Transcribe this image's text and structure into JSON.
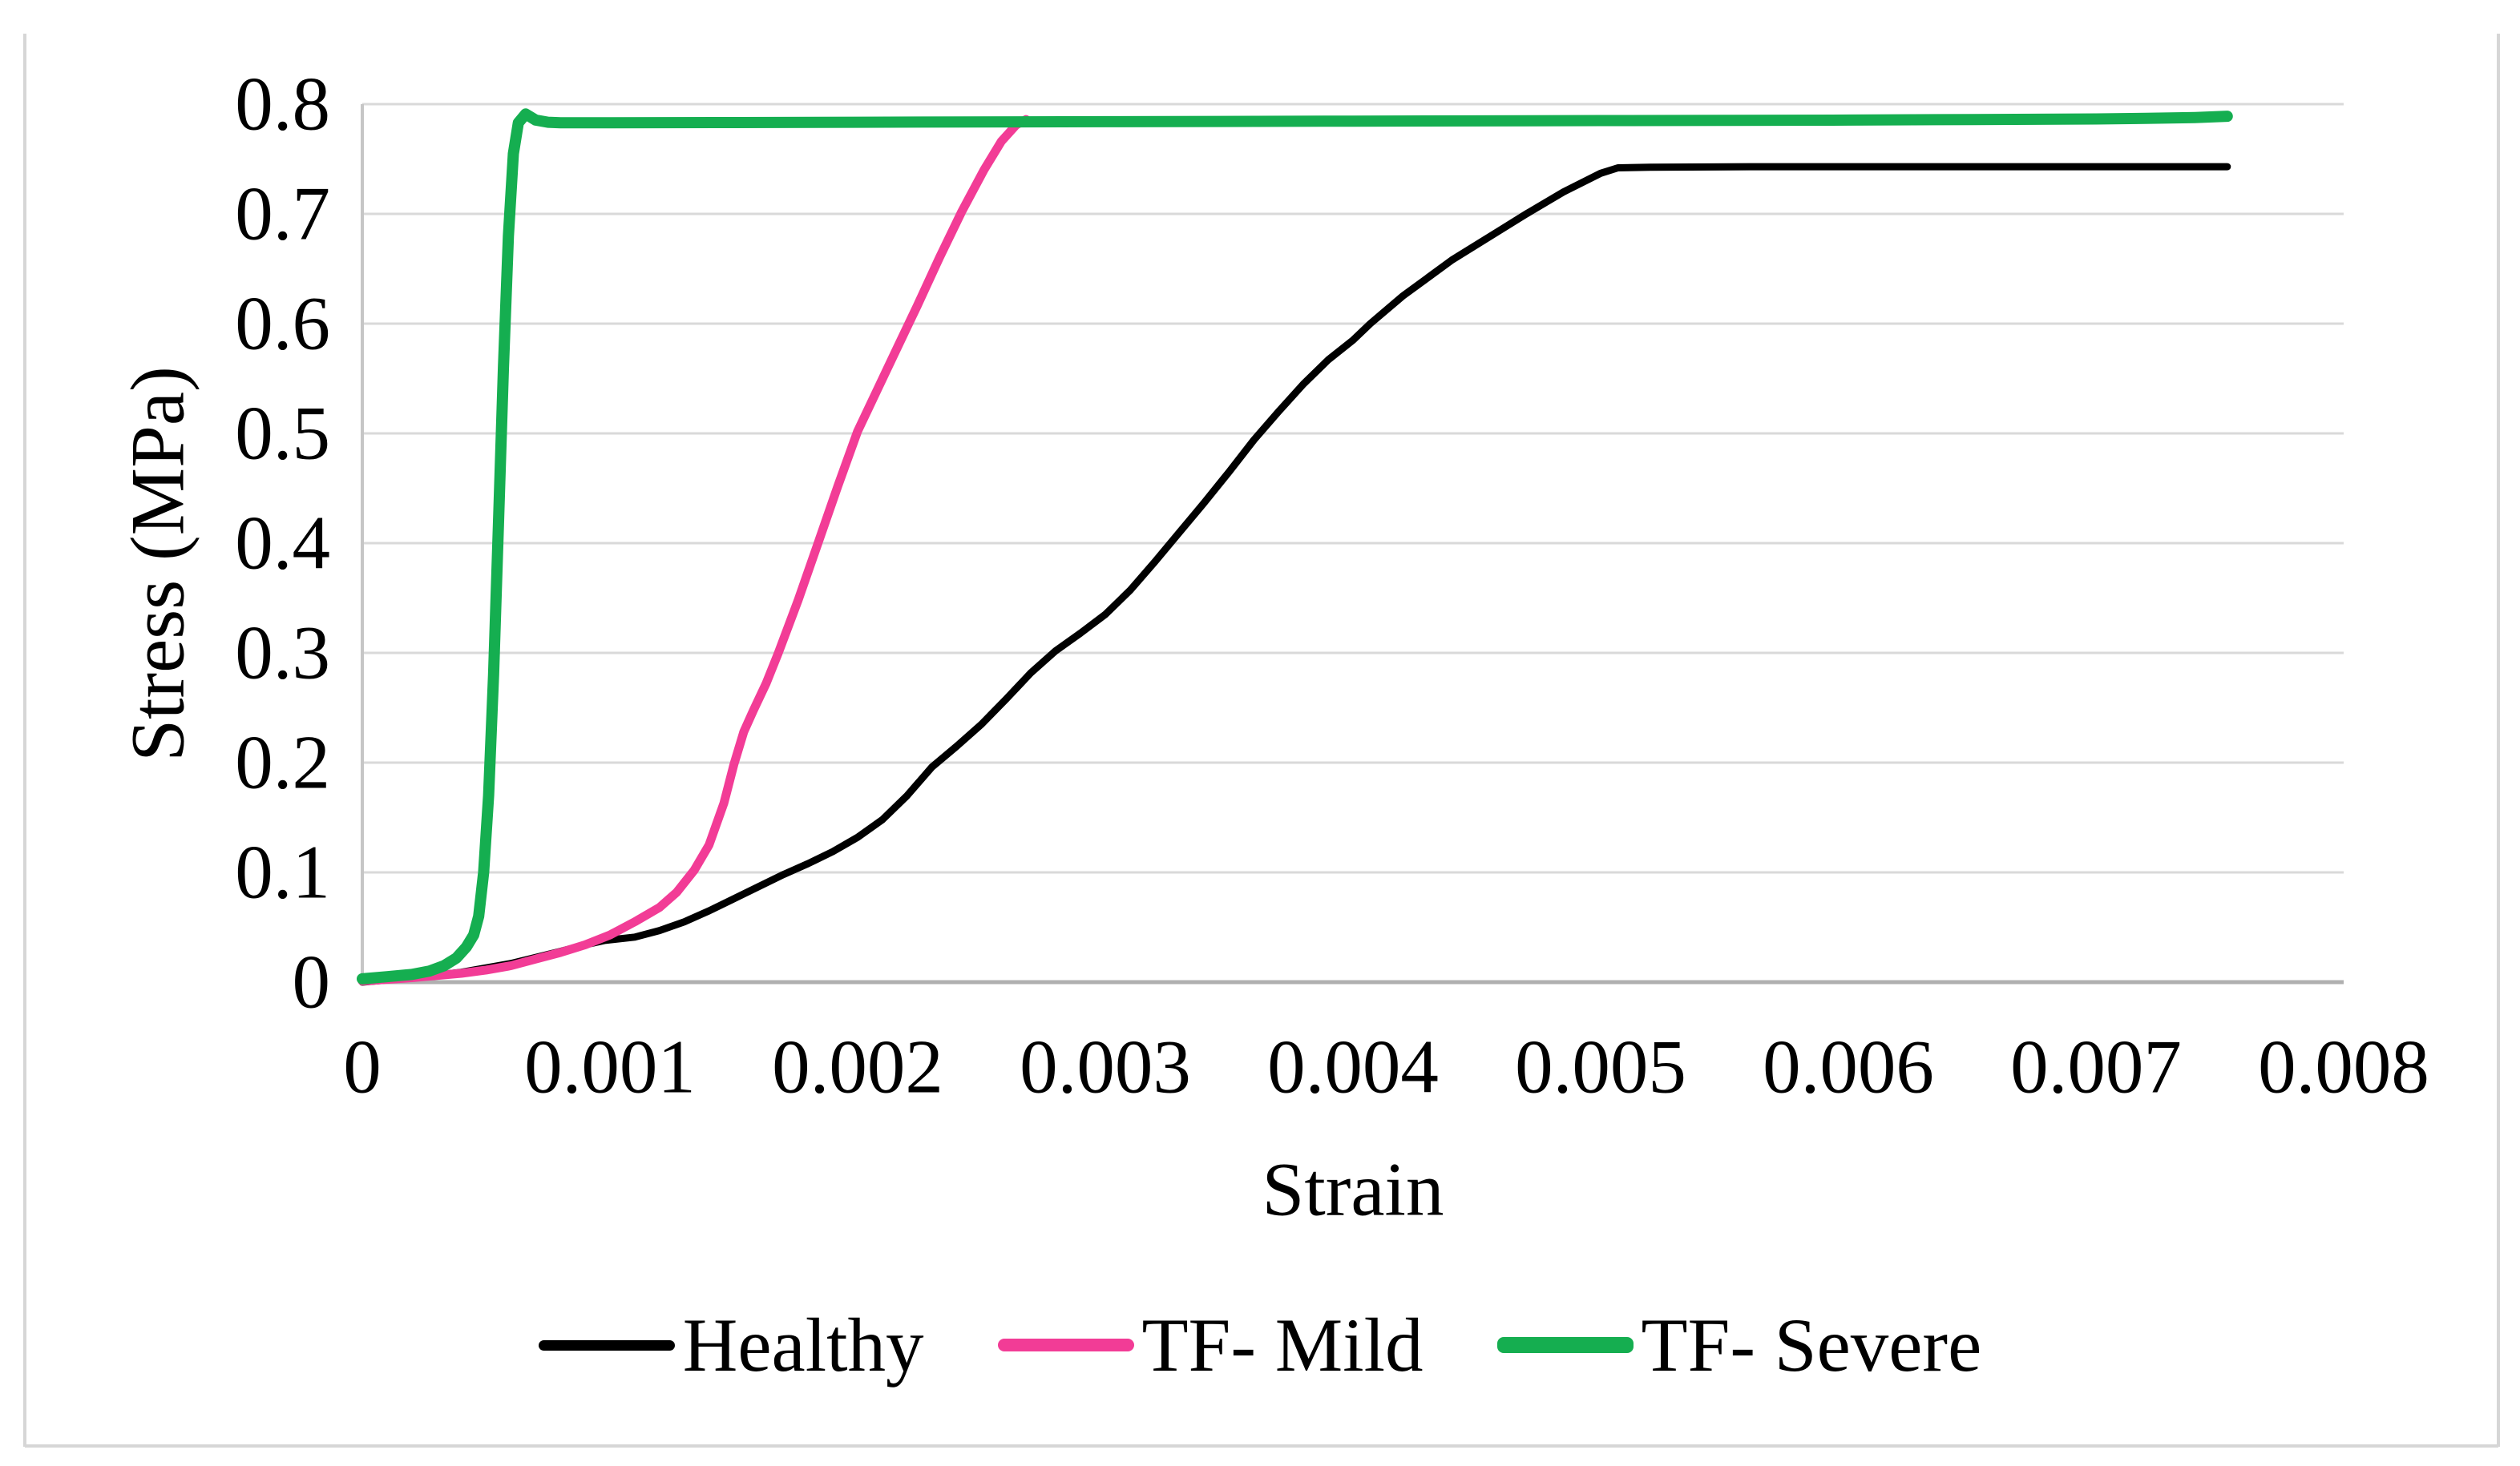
{
  "figure": {
    "background": "#ffffff",
    "border_color": "#d6d6d6"
  },
  "chart_data": {
    "type": "line",
    "title": "",
    "xlabel": "Strain",
    "ylabel": "Stress (MPa)",
    "xlim": [
      0,
      0.008
    ],
    "ylim": [
      0,
      0.8
    ],
    "grid": "horizontal",
    "gridline_color": "#d9d9d9",
    "x_axis_line_color": "#b0b0b0",
    "y_axis_line_color": "#c6c6c6",
    "legend_position": "bottom",
    "x_ticks": [
      0,
      0.001,
      0.002,
      0.003,
      0.004,
      0.005,
      0.006,
      0.007,
      0.008
    ],
    "x_tick_labels": [
      "0",
      "0.001",
      "0.002",
      "0.003",
      "0.004",
      "0.005",
      "0.006",
      "0.007",
      "0.008"
    ],
    "y_ticks": [
      0,
      0.1,
      0.2,
      0.3,
      0.4,
      0.5,
      0.6,
      0.7,
      0.8
    ],
    "y_tick_labels": [
      "0",
      "0.1",
      "0.2",
      "0.3",
      "0.4",
      "0.5",
      "0.6",
      "0.7",
      "0.8"
    ],
    "series": [
      {
        "name": "Healthy",
        "color": "#000000",
        "line_width": 9,
        "points": [
          [
            0,
            0
          ],
          [
            0.0002,
            0.004
          ],
          [
            0.0004,
            0.009
          ],
          [
            0.0006,
            0.017
          ],
          [
            0.0008,
            0.028
          ],
          [
            0.0009,
            0.034
          ],
          [
            0.00098,
            0.038
          ],
          [
            0.0011,
            0.041
          ],
          [
            0.0012,
            0.047
          ],
          [
            0.0013,
            0.055
          ],
          [
            0.0014,
            0.065
          ],
          [
            0.0015,
            0.076
          ],
          [
            0.0016,
            0.087
          ],
          [
            0.0017,
            0.098
          ],
          [
            0.0018,
            0.108
          ],
          [
            0.0019,
            0.119
          ],
          [
            0.002,
            0.132
          ],
          [
            0.0021,
            0.148
          ],
          [
            0.0022,
            0.17
          ],
          [
            0.0023,
            0.196
          ],
          [
            0.0024,
            0.215
          ],
          [
            0.0025,
            0.235
          ],
          [
            0.0026,
            0.258
          ],
          [
            0.0027,
            0.282
          ],
          [
            0.0028,
            0.302
          ],
          [
            0.0029,
            0.318
          ],
          [
            0.003,
            0.335
          ],
          [
            0.0031,
            0.357
          ],
          [
            0.0032,
            0.383
          ],
          [
            0.0033,
            0.41
          ],
          [
            0.0034,
            0.437
          ],
          [
            0.0035,
            0.465
          ],
          [
            0.0036,
            0.494
          ],
          [
            0.0037,
            0.52
          ],
          [
            0.0038,
            0.545
          ],
          [
            0.0039,
            0.567
          ],
          [
            0.004,
            0.585
          ],
          [
            0.00407,
            0.6
          ],
          [
            0.0042,
            0.625
          ],
          [
            0.0044,
            0.658
          ],
          [
            0.0046,
            0.686
          ],
          [
            0.0047,
            0.7
          ],
          [
            0.00485,
            0.72
          ],
          [
            0.005,
            0.737
          ],
          [
            0.00507,
            0.742
          ],
          [
            0.0052,
            0.7425
          ],
          [
            0.0056,
            0.743
          ],
          [
            0.006,
            0.743
          ],
          [
            0.0065,
            0.743
          ],
          [
            0.007,
            0.743
          ],
          [
            0.00753,
            0.743
          ]
        ]
      },
      {
        "name": "TF- Mild",
        "color": "#f23c96",
        "line_width": 11,
        "points": [
          [
            0,
            0.001
          ],
          [
            0.0002,
            0.004
          ],
          [
            0.0004,
            0.008
          ],
          [
            0.0005,
            0.011
          ],
          [
            0.0006,
            0.015
          ],
          [
            0.0007,
            0.021
          ],
          [
            0.0008,
            0.027
          ],
          [
            0.0009,
            0.034
          ],
          [
            0.001,
            0.043
          ],
          [
            0.0011,
            0.055
          ],
          [
            0.0012,
            0.068
          ],
          [
            0.00127,
            0.082
          ],
          [
            0.00134,
            0.102
          ],
          [
            0.0014,
            0.125
          ],
          [
            0.00146,
            0.163
          ],
          [
            0.0015,
            0.198
          ],
          [
            0.00154,
            0.228
          ],
          [
            0.00158,
            0.248
          ],
          [
            0.00163,
            0.272
          ],
          [
            0.00168,
            0.3
          ],
          [
            0.00176,
            0.348
          ],
          [
            0.00184,
            0.4
          ],
          [
            0.00192,
            0.452
          ],
          [
            0.002,
            0.502
          ],
          [
            0.00208,
            0.54
          ],
          [
            0.00216,
            0.578
          ],
          [
            0.00224,
            0.616
          ],
          [
            0.00233,
            0.66
          ],
          [
            0.00242,
            0.702
          ],
          [
            0.00251,
            0.74
          ],
          [
            0.00258,
            0.766
          ],
          [
            0.00264,
            0.781
          ],
          [
            0.00268,
            0.786
          ]
        ]
      },
      {
        "name": "TF- Severe",
        "color": "#15ae50",
        "line_width": 14,
        "points": [
          [
            0,
            0.003
          ],
          [
            0.0001,
            0.005
          ],
          [
            0.0002,
            0.007
          ],
          [
            0.00027,
            0.01
          ],
          [
            0.00033,
            0.015
          ],
          [
            0.00038,
            0.022
          ],
          [
            0.00042,
            0.032
          ],
          [
            0.00045,
            0.043
          ],
          [
            0.00047,
            0.06
          ],
          [
            0.00049,
            0.1
          ],
          [
            0.00051,
            0.17
          ],
          [
            0.00053,
            0.28
          ],
          [
            0.00055,
            0.42
          ],
          [
            0.00057,
            0.56
          ],
          [
            0.00059,
            0.68
          ],
          [
            0.00061,
            0.755
          ],
          [
            0.00063,
            0.783
          ],
          [
            0.00066,
            0.791
          ],
          [
            0.0007,
            0.7855
          ],
          [
            0.00075,
            0.7835
          ],
          [
            0.0008,
            0.783
          ],
          [
            0.001,
            0.783
          ],
          [
            0.0015,
            0.7832
          ],
          [
            0.002,
            0.7835
          ],
          [
            0.003,
            0.784
          ],
          [
            0.004,
            0.7845
          ],
          [
            0.005,
            0.785
          ],
          [
            0.0055,
            0.7852
          ],
          [
            0.006,
            0.7855
          ],
          [
            0.0065,
            0.786
          ],
          [
            0.007,
            0.7865
          ],
          [
            0.0072,
            0.787
          ],
          [
            0.0074,
            0.7878
          ],
          [
            0.00753,
            0.789
          ]
        ]
      }
    ]
  }
}
